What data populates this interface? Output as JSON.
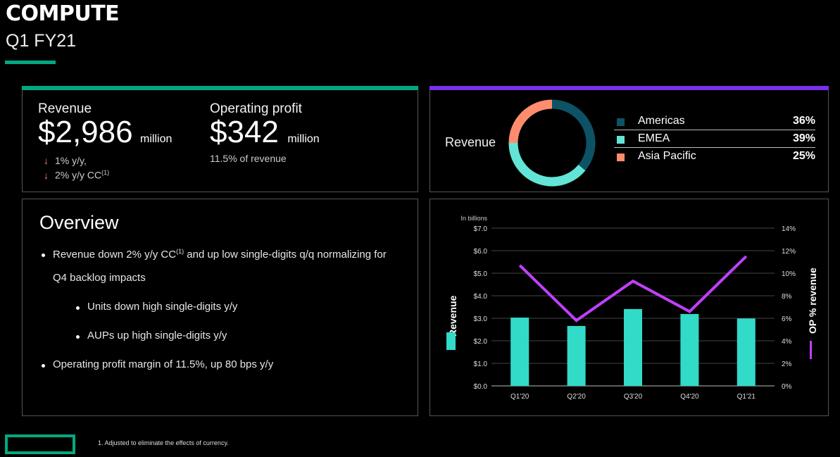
{
  "header": {
    "title": "COMPUTE",
    "subtitle": "Q1 FY21"
  },
  "colors": {
    "accent_green": "#01a982",
    "accent_purple": "#7630ea",
    "bar": "#32dac8",
    "line": "#c140ff",
    "americas": "#0d5265",
    "emea": "#62e5d6",
    "apac": "#ff8d6d",
    "arrow_down": "#ff8d6d"
  },
  "kpi": {
    "revenue": {
      "label": "Revenue",
      "value": "$2,986",
      "unit": "million",
      "notes": [
        "1% y/y,",
        "2% y/y CC"
      ],
      "note_sup": "(1)",
      "arrow_icon": "arrow-down-icon"
    },
    "op_profit": {
      "label": "Operating profit",
      "value": "$342",
      "unit": "million",
      "note": "11.5% of revenue"
    }
  },
  "revenue_mix": {
    "label": "Revenue",
    "segments": [
      {
        "name": "Americas",
        "pct_label": "36%",
        "value": 36
      },
      {
        "name": "EMEA",
        "pct_label": "39%",
        "value": 39
      },
      {
        "name": "Asia Pacific",
        "pct_label": "25%",
        "value": 25
      }
    ]
  },
  "overview": {
    "title": "Overview",
    "bullets": [
      {
        "text_a": "Revenue down 2% y/y CC",
        "sup": "(1)",
        "text_b": " and up low single-digits q/q normalizing for",
        "text_c": "Q4 backlog impacts"
      },
      {
        "text": "Units down high single-digits y/y"
      },
      {
        "text": "AUPs up high single-digits y/y"
      },
      {
        "text": "Operating profit margin of 11.5%, up 80 bps y/y"
      }
    ]
  },
  "footer": {
    "footnote": "1.  Adjusted to eliminate the effects of currency."
  },
  "chart_data": {
    "type": "bar",
    "title": "",
    "unit_note": "In billions",
    "categories": [
      "Q1'20",
      "Q2'20",
      "Q3'20",
      "Q4'20",
      "Q1'21"
    ],
    "series": [
      {
        "name": "Revenue",
        "type": "bar",
        "axis": "left",
        "values": [
          3.03,
          2.66,
          3.41,
          3.19,
          2.99
        ]
      },
      {
        "name": "OP % revenue",
        "type": "line",
        "axis": "right",
        "values": [
          10.7,
          5.8,
          9.3,
          6.6,
          11.5
        ]
      }
    ],
    "ylabel": "Revenue",
    "y2label": "OP % revenue",
    "ylim": [
      0,
      7
    ],
    "y2lim": [
      0,
      14
    ],
    "yticks": [
      "$0.0",
      "$1.0",
      "$2.0",
      "$3.0",
      "$4.0",
      "$5.0",
      "$6.0",
      "$7.0"
    ],
    "y2ticks": [
      "0%",
      "2%",
      "4%",
      "6%",
      "8%",
      "10%",
      "12%",
      "14%"
    ],
    "grid": true,
    "legend": "axis-labels"
  }
}
